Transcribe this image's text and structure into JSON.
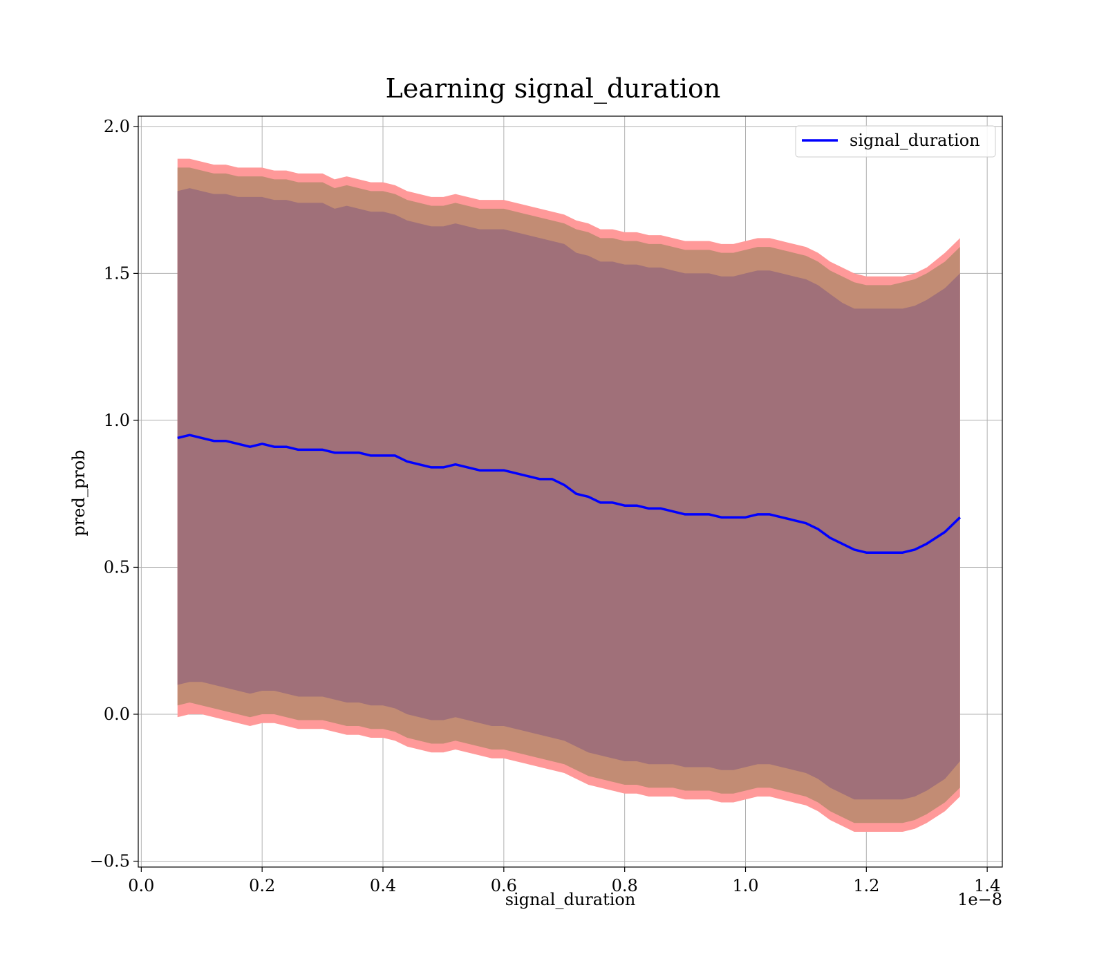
{
  "chart_data": {
    "type": "area",
    "title": "Learning signal_duration",
    "xlabel": "signal_duration",
    "ylabel": "pred_prob",
    "x_offset_text": "1e−8",
    "xlim": [
      -0.005,
      1.425
    ],
    "ylim": [
      -0.52,
      2.035
    ],
    "grid": true,
    "legend": {
      "position": "upper right",
      "entries": [
        "signal_duration"
      ]
    },
    "x_ticks": [
      0.0,
      0.2,
      0.4,
      0.6,
      0.8,
      1.0,
      1.2,
      1.4
    ],
    "x_tick_labels": [
      "0.0",
      "0.2",
      "0.4",
      "0.6",
      "0.8",
      "1.0",
      "1.2",
      "1.4"
    ],
    "y_ticks": [
      -0.5,
      0.0,
      0.5,
      1.0,
      1.5,
      2.0
    ],
    "y_tick_labels": [
      "−0.5",
      "0.0",
      "0.5",
      "1.0",
      "1.5",
      "2.0"
    ],
    "colors": {
      "line": "#0000ff",
      "band_outer": "#ff9999",
      "band_middle": "#c28c74",
      "band_inner": "#a07079"
    },
    "x": [
      0.06,
      0.08,
      0.1,
      0.12,
      0.14,
      0.16,
      0.18,
      0.2,
      0.22,
      0.24,
      0.26,
      0.28,
      0.3,
      0.32,
      0.34,
      0.36,
      0.38,
      0.4,
      0.42,
      0.44,
      0.46,
      0.48,
      0.5,
      0.52,
      0.54,
      0.56,
      0.58,
      0.6,
      0.62,
      0.64,
      0.66,
      0.68,
      0.7,
      0.72,
      0.74,
      0.76,
      0.78,
      0.8,
      0.82,
      0.84,
      0.86,
      0.88,
      0.9,
      0.92,
      0.94,
      0.96,
      0.98,
      1.0,
      1.02,
      1.04,
      1.06,
      1.08,
      1.1,
      1.12,
      1.14,
      1.16,
      1.18,
      1.2,
      1.22,
      1.24,
      1.26,
      1.28,
      1.3,
      1.33,
      1.355
    ],
    "series": [
      {
        "name": "signal_duration",
        "values": [
          0.94,
          0.95,
          0.94,
          0.93,
          0.93,
          0.92,
          0.91,
          0.92,
          0.91,
          0.91,
          0.9,
          0.9,
          0.9,
          0.89,
          0.89,
          0.89,
          0.88,
          0.88,
          0.88,
          0.86,
          0.85,
          0.84,
          0.84,
          0.85,
          0.84,
          0.83,
          0.83,
          0.83,
          0.82,
          0.81,
          0.8,
          0.8,
          0.78,
          0.75,
          0.74,
          0.72,
          0.72,
          0.71,
          0.71,
          0.7,
          0.7,
          0.69,
          0.68,
          0.68,
          0.68,
          0.67,
          0.67,
          0.67,
          0.68,
          0.68,
          0.67,
          0.66,
          0.65,
          0.63,
          0.6,
          0.58,
          0.56,
          0.55,
          0.55,
          0.55,
          0.55,
          0.56,
          0.58,
          0.62,
          0.67
        ]
      }
    ],
    "bands": [
      {
        "level": "outer",
        "upper": [
          1.89,
          1.89,
          1.88,
          1.87,
          1.87,
          1.86,
          1.86,
          1.86,
          1.85,
          1.85,
          1.84,
          1.84,
          1.84,
          1.82,
          1.83,
          1.82,
          1.81,
          1.81,
          1.8,
          1.78,
          1.77,
          1.76,
          1.76,
          1.77,
          1.76,
          1.75,
          1.75,
          1.75,
          1.74,
          1.73,
          1.72,
          1.71,
          1.7,
          1.68,
          1.67,
          1.65,
          1.65,
          1.64,
          1.64,
          1.63,
          1.63,
          1.62,
          1.61,
          1.61,
          1.61,
          1.6,
          1.6,
          1.61,
          1.62,
          1.62,
          1.61,
          1.6,
          1.59,
          1.57,
          1.54,
          1.52,
          1.5,
          1.49,
          1.49,
          1.49,
          1.49,
          1.5,
          1.52,
          1.57,
          1.62
        ],
        "lower": [
          -0.01,
          0.0,
          0.0,
          -0.01,
          -0.02,
          -0.03,
          -0.04,
          -0.03,
          -0.03,
          -0.04,
          -0.05,
          -0.05,
          -0.05,
          -0.06,
          -0.07,
          -0.07,
          -0.08,
          -0.08,
          -0.09,
          -0.11,
          -0.12,
          -0.13,
          -0.13,
          -0.12,
          -0.13,
          -0.14,
          -0.15,
          -0.15,
          -0.16,
          -0.17,
          -0.18,
          -0.19,
          -0.2,
          -0.22,
          -0.24,
          -0.25,
          -0.26,
          -0.27,
          -0.27,
          -0.28,
          -0.28,
          -0.28,
          -0.29,
          -0.29,
          -0.29,
          -0.3,
          -0.3,
          -0.29,
          -0.28,
          -0.28,
          -0.29,
          -0.3,
          -0.31,
          -0.33,
          -0.36,
          -0.38,
          -0.4,
          -0.4,
          -0.4,
          -0.4,
          -0.4,
          -0.39,
          -0.37,
          -0.33,
          -0.28
        ]
      },
      {
        "level": "middle",
        "upper": [
          1.86,
          1.86,
          1.85,
          1.84,
          1.84,
          1.83,
          1.83,
          1.83,
          1.82,
          1.82,
          1.81,
          1.81,
          1.81,
          1.79,
          1.8,
          1.79,
          1.78,
          1.78,
          1.77,
          1.75,
          1.74,
          1.73,
          1.73,
          1.74,
          1.73,
          1.72,
          1.72,
          1.72,
          1.71,
          1.7,
          1.69,
          1.68,
          1.67,
          1.65,
          1.64,
          1.62,
          1.62,
          1.61,
          1.61,
          1.6,
          1.6,
          1.59,
          1.58,
          1.58,
          1.58,
          1.57,
          1.57,
          1.58,
          1.59,
          1.59,
          1.58,
          1.57,
          1.56,
          1.54,
          1.51,
          1.49,
          1.47,
          1.46,
          1.46,
          1.46,
          1.47,
          1.48,
          1.5,
          1.54,
          1.59
        ],
        "lower": [
          0.03,
          0.04,
          0.03,
          0.02,
          0.01,
          0.0,
          -0.01,
          0.0,
          0.0,
          -0.01,
          -0.02,
          -0.02,
          -0.02,
          -0.03,
          -0.04,
          -0.04,
          -0.05,
          -0.05,
          -0.06,
          -0.08,
          -0.09,
          -0.1,
          -0.1,
          -0.09,
          -0.1,
          -0.11,
          -0.12,
          -0.12,
          -0.13,
          -0.14,
          -0.15,
          -0.16,
          -0.17,
          -0.19,
          -0.21,
          -0.22,
          -0.23,
          -0.24,
          -0.24,
          -0.25,
          -0.25,
          -0.25,
          -0.26,
          -0.26,
          -0.26,
          -0.27,
          -0.27,
          -0.26,
          -0.25,
          -0.25,
          -0.26,
          -0.27,
          -0.28,
          -0.3,
          -0.33,
          -0.35,
          -0.37,
          -0.37,
          -0.37,
          -0.37,
          -0.37,
          -0.36,
          -0.34,
          -0.3,
          -0.25
        ]
      },
      {
        "level": "inner",
        "upper": [
          1.78,
          1.79,
          1.78,
          1.77,
          1.77,
          1.76,
          1.76,
          1.76,
          1.75,
          1.75,
          1.74,
          1.74,
          1.74,
          1.72,
          1.73,
          1.72,
          1.71,
          1.71,
          1.7,
          1.68,
          1.67,
          1.66,
          1.66,
          1.67,
          1.66,
          1.65,
          1.65,
          1.65,
          1.64,
          1.63,
          1.62,
          1.61,
          1.6,
          1.57,
          1.56,
          1.54,
          1.54,
          1.53,
          1.53,
          1.52,
          1.52,
          1.51,
          1.5,
          1.5,
          1.5,
          1.49,
          1.49,
          1.5,
          1.51,
          1.51,
          1.5,
          1.49,
          1.48,
          1.46,
          1.43,
          1.4,
          1.38,
          1.38,
          1.38,
          1.38,
          1.38,
          1.39,
          1.41,
          1.45,
          1.5
        ],
        "lower": [
          0.1,
          0.11,
          0.11,
          0.1,
          0.09,
          0.08,
          0.07,
          0.08,
          0.08,
          0.07,
          0.06,
          0.06,
          0.06,
          0.05,
          0.04,
          0.04,
          0.03,
          0.03,
          0.02,
          0.0,
          -0.01,
          -0.02,
          -0.02,
          -0.01,
          -0.02,
          -0.03,
          -0.04,
          -0.04,
          -0.05,
          -0.06,
          -0.07,
          -0.08,
          -0.09,
          -0.11,
          -0.13,
          -0.14,
          -0.15,
          -0.16,
          -0.16,
          -0.17,
          -0.17,
          -0.17,
          -0.18,
          -0.18,
          -0.18,
          -0.19,
          -0.19,
          -0.18,
          -0.17,
          -0.17,
          -0.18,
          -0.19,
          -0.2,
          -0.22,
          -0.25,
          -0.27,
          -0.29,
          -0.29,
          -0.29,
          -0.29,
          -0.29,
          -0.28,
          -0.26,
          -0.22,
          -0.16
        ]
      }
    ]
  }
}
